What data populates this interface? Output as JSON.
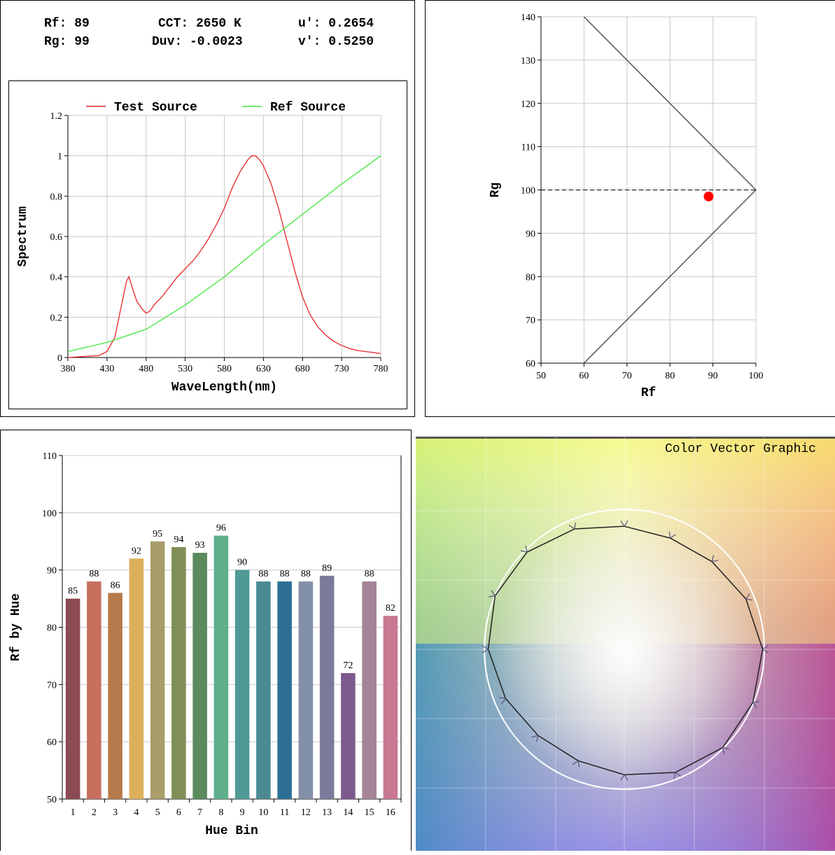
{
  "metrics": {
    "rf": "Rf: 89",
    "rg": "Rg: 99",
    "cct": "CCT: 2650 K",
    "duv": "Duv: -0.0023",
    "u": "u': 0.2654",
    "v": "v': 0.5250"
  },
  "colors": {
    "test": "#e8242a",
    "ref": "#3ee83a",
    "grid": "#c8c8c8",
    "point": "#ff0000",
    "bars": [
      "#8c4a52",
      "#c86f5e",
      "#b57a4b",
      "#dcb05a",
      "#a99d6b",
      "#7f8f56",
      "#5a8a5e",
      "#5eae8c",
      "#4f9a95",
      "#4b8a92",
      "#2d6f94",
      "#8290a8",
      "#7c7a9a",
      "#7c5a8e",
      "#a48496",
      "#c87890"
    ]
  },
  "chart_data": [
    {
      "type": "line",
      "legend": [
        "Test Source",
        "Ref Source"
      ],
      "legend_position": "top",
      "xlabel": "WaveLength(nm)",
      "ylabel": "Spectrum",
      "xlim": [
        380,
        780
      ],
      "ylim": [
        0,
        1.2
      ],
      "xticks": [
        "380",
        "430",
        "480",
        "530",
        "580",
        "630",
        "680",
        "730",
        "780"
      ],
      "yticks": [
        "0",
        "0.2",
        "0.4",
        "0.6",
        "0.8",
        "1",
        "1.2"
      ],
      "grid": true,
      "series": [
        {
          "name": "Test Source",
          "x": [
            380,
            400,
            420,
            430,
            440,
            448,
            455,
            458,
            462,
            468,
            475,
            480,
            485,
            490,
            500,
            510,
            520,
            530,
            540,
            550,
            560,
            570,
            580,
            590,
            600,
            610,
            615,
            620,
            625,
            630,
            640,
            650,
            660,
            670,
            680,
            690,
            700,
            710,
            720,
            730,
            740,
            750,
            760,
            770,
            780
          ],
          "y": [
            0.0,
            0.005,
            0.01,
            0.03,
            0.1,
            0.25,
            0.38,
            0.4,
            0.35,
            0.28,
            0.24,
            0.22,
            0.23,
            0.26,
            0.3,
            0.35,
            0.4,
            0.44,
            0.48,
            0.53,
            0.59,
            0.66,
            0.74,
            0.84,
            0.92,
            0.98,
            1.0,
            1.0,
            0.98,
            0.95,
            0.86,
            0.73,
            0.58,
            0.43,
            0.3,
            0.21,
            0.15,
            0.11,
            0.08,
            0.06,
            0.045,
            0.035,
            0.03,
            0.025,
            0.02
          ]
        },
        {
          "name": "Ref Source",
          "x": [
            380,
            430,
            480,
            530,
            580,
            630,
            680,
            730,
            780
          ],
          "y": [
            0.03,
            0.075,
            0.14,
            0.26,
            0.4,
            0.56,
            0.71,
            0.86,
            1.0
          ]
        }
      ]
    },
    {
      "type": "scatter",
      "xlabel": "Rf",
      "ylabel": "Rg",
      "xlim": [
        50,
        100
      ],
      "ylim": [
        60,
        140
      ],
      "xticks": [
        "50",
        "60",
        "70",
        "80",
        "90",
        "100"
      ],
      "yticks": [
        "60",
        "70",
        "80",
        "90",
        "100",
        "110",
        "120",
        "130",
        "140"
      ],
      "grid": true,
      "boundary": [
        [
          60,
          140
        ],
        [
          100,
          100
        ],
        [
          60,
          60
        ]
      ],
      "reference_line_y": 100,
      "points": [
        {
          "x": 89,
          "y": 98.5
        }
      ]
    },
    {
      "type": "bar",
      "xlabel": "Hue Bin",
      "ylabel": "Rf by Hue",
      "ylim": [
        50,
        110
      ],
      "yticks": [
        "50",
        "60",
        "70",
        "80",
        "90",
        "100",
        "110"
      ],
      "categories": [
        "1",
        "2",
        "3",
        "4",
        "5",
        "6",
        "7",
        "8",
        "9",
        "10",
        "11",
        "12",
        "13",
        "14",
        "15",
        "16"
      ],
      "values": [
        85,
        88,
        86,
        92,
        95,
        94,
        93,
        96,
        90,
        88,
        88,
        88,
        89,
        72,
        88,
        82
      ]
    }
  ],
  "vector_graphic": {
    "title": "Color Vector Graphic"
  }
}
